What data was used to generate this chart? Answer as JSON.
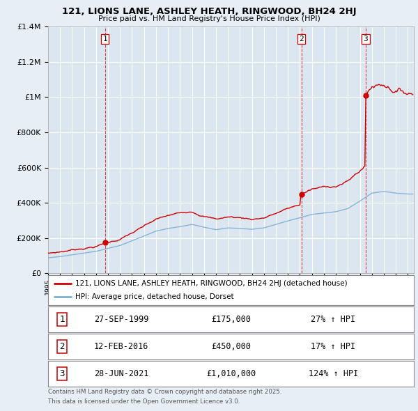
{
  "title_line1": "121, LIONS LANE, ASHLEY HEATH, RINGWOOD, BH24 2HJ",
  "title_line2": "Price paid vs. HM Land Registry's House Price Index (HPI)",
  "background_color": "#e8eef5",
  "plot_bg_color": "#dce6f0",
  "transactions": [
    {
      "num": 1,
      "date_num": 1999.74,
      "price": 175000,
      "label": "27-SEP-1999",
      "pct": "27%",
      "dir": "↑"
    },
    {
      "num": 2,
      "date_num": 2016.12,
      "price": 450000,
      "label": "12-FEB-2016",
      "pct": "17%",
      "dir": "↑"
    },
    {
      "num": 3,
      "date_num": 2021.49,
      "price": 1010000,
      "label": "28-JUN-2021",
      "pct": "124%",
      "dir": "↑"
    }
  ],
  "legend_line1": "121, LIONS LANE, ASHLEY HEATH, RINGWOOD, BH24 2HJ (detached house)",
  "legend_line2": "HPI: Average price, detached house, Dorset",
  "footer1": "Contains HM Land Registry data © Crown copyright and database right 2025.",
  "footer2": "This data is licensed under the Open Government Licence v3.0.",
  "red_color": "#cc0000",
  "blue_color": "#7bafd4",
  "vline_color": "#cc0000",
  "ylim_max": 1400000,
  "xmin": 1995.0,
  "xmax": 2025.5
}
